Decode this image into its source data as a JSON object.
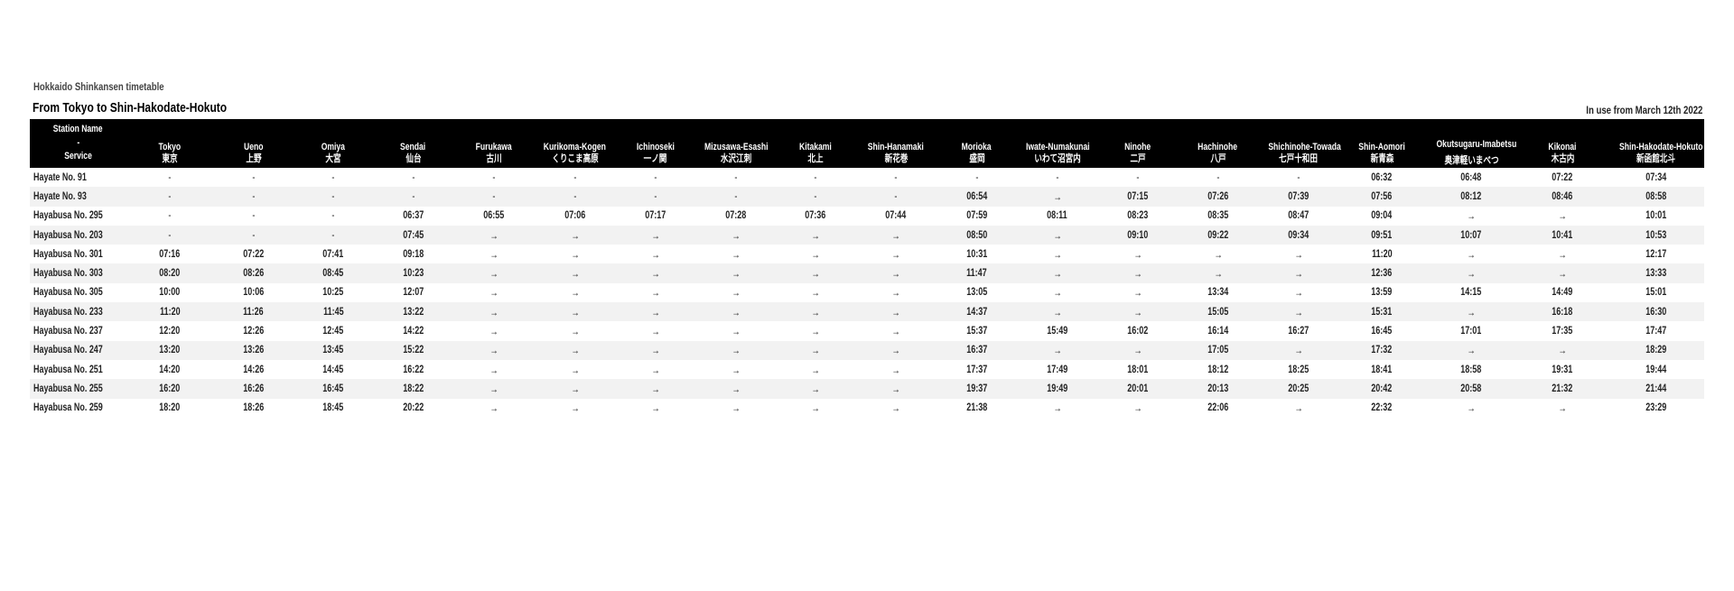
{
  "header": {
    "title": "Hokkaido Shinkansen timetable",
    "subtitle": "From Tokyo to Shin-Hakodate-Hokuto",
    "effective": "In use from March 12th 2022"
  },
  "table": {
    "corner": {
      "top": "Station Name",
      "mid": "-",
      "bottom": "Service"
    },
    "stations": [
      {
        "en": "Tokyo",
        "jp": "東京"
      },
      {
        "en": "Ueno",
        "jp": "上野"
      },
      {
        "en": "Omiya",
        "jp": "大宮"
      },
      {
        "en": "Sendai",
        "jp": "仙台"
      },
      {
        "en": "Furukawa",
        "jp": "古川"
      },
      {
        "en": "Kurikoma-Kogen",
        "jp": "くりこま高原"
      },
      {
        "en": "Ichinoseki",
        "jp": "一ノ関"
      },
      {
        "en": "Mizusawa-Esashi",
        "jp": "水沢江刺"
      },
      {
        "en": "Kitakami",
        "jp": "北上"
      },
      {
        "en": "Shin-Hanamaki",
        "jp": "新花巻"
      },
      {
        "en": "Morioka",
        "jp": "盛岡"
      },
      {
        "en": "Iwate-Numakunai",
        "jp": "いわて沼宮内"
      },
      {
        "en": "Ninohe",
        "jp": "二戸"
      },
      {
        "en": "Hachinohe",
        "jp": "八戸"
      },
      {
        "en": "Shichinohe-Towada",
        "jp": "七戸十和田"
      },
      {
        "en": "Shin-Aomori",
        "jp": "新青森"
      },
      {
        "en": "Okutsugaru-Imabetsu",
        "jp": "奥津軽いまべつ"
      },
      {
        "en": "Kikonai",
        "jp": "木古内"
      },
      {
        "en": "Shin-Hakodate-Hokuto",
        "jp": "新函館北斗"
      }
    ],
    "rows": [
      {
        "service": "Hayate No. 91",
        "times": [
          "-",
          "-",
          "-",
          "-",
          "-",
          "-",
          "-",
          "-",
          "-",
          "-",
          "-",
          "-",
          "-",
          "-",
          "-",
          "06:32",
          "06:48",
          "07:22",
          "07:34"
        ]
      },
      {
        "service": "Hayate No. 93",
        "times": [
          "-",
          "-",
          "-",
          "-",
          "-",
          "-",
          "-",
          "-",
          "-",
          "-",
          "06:54",
          "→",
          "07:15",
          "07:26",
          "07:39",
          "07:56",
          "08:12",
          "08:46",
          "08:58"
        ]
      },
      {
        "service": "Hayabusa No. 295",
        "times": [
          "-",
          "-",
          "-",
          "06:37",
          "06:55",
          "07:06",
          "07:17",
          "07:28",
          "07:36",
          "07:44",
          "07:59",
          "08:11",
          "08:23",
          "08:35",
          "08:47",
          "09:04",
          "→",
          "→",
          "10:01"
        ]
      },
      {
        "service": "Hayabusa No. 203",
        "times": [
          "-",
          "-",
          "-",
          "07:45",
          "→",
          "→",
          "→",
          "→",
          "→",
          "→",
          "08:50",
          "→",
          "09:10",
          "09:22",
          "09:34",
          "09:51",
          "10:07",
          "10:41",
          "10:53"
        ]
      },
      {
        "service": "Hayabusa No. 301",
        "times": [
          "07:16",
          "07:22",
          "07:41",
          "09:18",
          "→",
          "→",
          "→",
          "→",
          "→",
          "→",
          "10:31",
          "→",
          "→",
          "→",
          "→",
          "11:20",
          "→",
          "→",
          "12:17"
        ]
      },
      {
        "service": "Hayabusa No. 303",
        "times": [
          "08:20",
          "08:26",
          "08:45",
          "10:23",
          "→",
          "→",
          "→",
          "→",
          "→",
          "→",
          "11:47",
          "→",
          "→",
          "→",
          "→",
          "12:36",
          "→",
          "→",
          "13:33"
        ]
      },
      {
        "service": "Hayabusa No. 305",
        "times": [
          "10:00",
          "10:06",
          "10:25",
          "12:07",
          "→",
          "→",
          "→",
          "→",
          "→",
          "→",
          "13:05",
          "→",
          "→",
          "13:34",
          "→",
          "13:59",
          "14:15",
          "14:49",
          "15:01"
        ]
      },
      {
        "service": "Hayabusa No. 233",
        "times": [
          "11:20",
          "11:26",
          "11:45",
          "13:22",
          "→",
          "→",
          "→",
          "→",
          "→",
          "→",
          "14:37",
          "→",
          "→",
          "15:05",
          "→",
          "15:31",
          "→",
          "16:18",
          "16:30"
        ]
      },
      {
        "service": "Hayabusa No. 237",
        "times": [
          "12:20",
          "12:26",
          "12:45",
          "14:22",
          "→",
          "→",
          "→",
          "→",
          "→",
          "→",
          "15:37",
          "15:49",
          "16:02",
          "16:14",
          "16:27",
          "16:45",
          "17:01",
          "17:35",
          "17:47"
        ]
      },
      {
        "service": "Hayabusa No. 247",
        "times": [
          "13:20",
          "13:26",
          "13:45",
          "15:22",
          "→",
          "→",
          "→",
          "→",
          "→",
          "→",
          "16:37",
          "→",
          "→",
          "17:05",
          "→",
          "17:32",
          "→",
          "→",
          "18:29"
        ]
      },
      {
        "service": "Hayabusa No. 251",
        "times": [
          "14:20",
          "14:26",
          "14:45",
          "16:22",
          "→",
          "→",
          "→",
          "→",
          "→",
          "→",
          "17:37",
          "17:49",
          "18:01",
          "18:12",
          "18:25",
          "18:41",
          "18:58",
          "19:31",
          "19:44"
        ]
      },
      {
        "service": "Hayabusa No. 255",
        "times": [
          "16:20",
          "16:26",
          "16:45",
          "18:22",
          "→",
          "→",
          "→",
          "→",
          "→",
          "→",
          "19:37",
          "19:49",
          "20:01",
          "20:13",
          "20:25",
          "20:42",
          "20:58",
          "21:32",
          "21:44"
        ]
      },
      {
        "service": "Hayabusa No. 259",
        "times": [
          "18:20",
          "18:26",
          "18:45",
          "20:22",
          "→",
          "→",
          "→",
          "→",
          "→",
          "→",
          "21:38",
          "→",
          "→",
          "22:06",
          "→",
          "22:32",
          "→",
          "→",
          "23:29"
        ]
      }
    ]
  }
}
